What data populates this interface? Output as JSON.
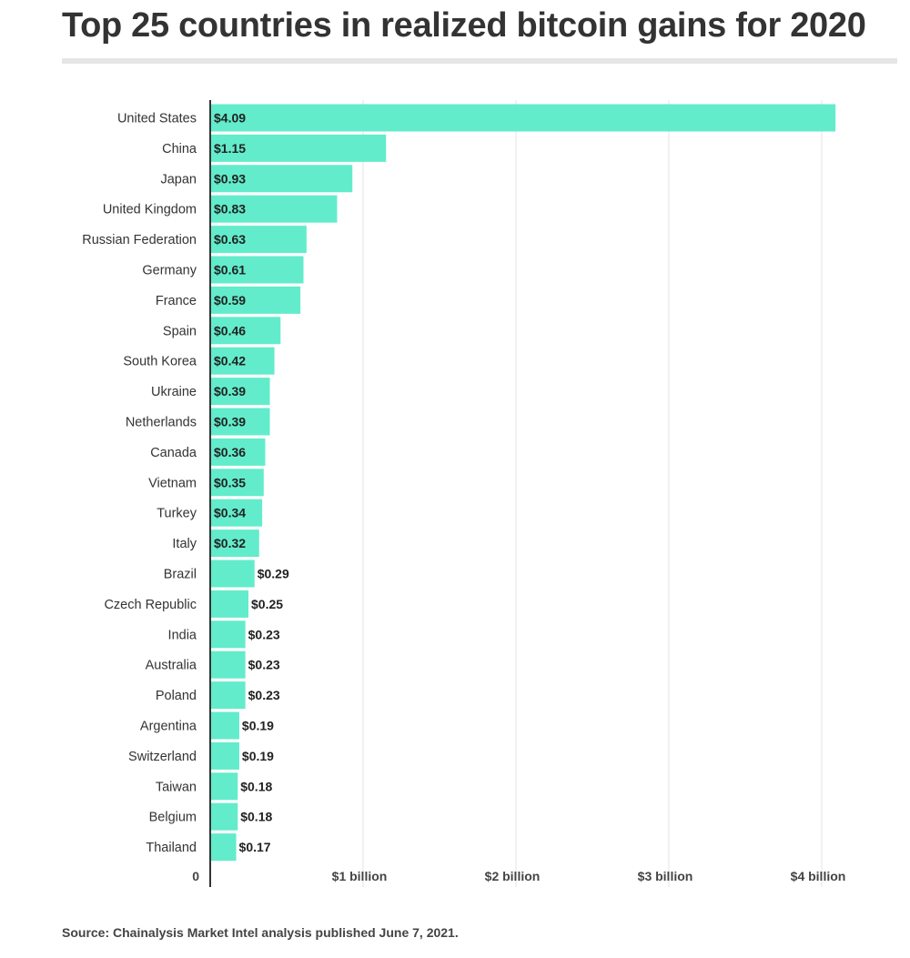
{
  "title": "Top 25 countries in realized bitcoin gains for 2020",
  "source": "Source: Chainalysis Market Intel analysis published June 7, 2021.",
  "colors": {
    "bar": "#62eccb",
    "text": "#333333",
    "grid": "#e3e3e3",
    "axis": "#333333"
  },
  "chart_data": {
    "type": "bar",
    "orientation": "horizontal",
    "unit": "billion USD",
    "categories": [
      "United States",
      "China",
      "Japan",
      "United Kingdom",
      "Russian Federation",
      "Germany",
      "France",
      "Spain",
      "South Korea",
      "Ukraine",
      "Netherlands",
      "Canada",
      "Vietnam",
      "Turkey",
      "Italy",
      "Brazil",
      "Czech Republic",
      "India",
      "Australia",
      "Poland",
      "Argentina",
      "Switzerland",
      "Taiwan",
      "Belgium",
      "Thailand"
    ],
    "values": [
      4.09,
      1.15,
      0.93,
      0.83,
      0.63,
      0.61,
      0.59,
      0.46,
      0.42,
      0.39,
      0.39,
      0.36,
      0.35,
      0.34,
      0.32,
      0.29,
      0.25,
      0.23,
      0.23,
      0.23,
      0.19,
      0.19,
      0.18,
      0.18,
      0.17
    ],
    "value_labels": [
      "$4.09",
      "$1.15",
      "$0.93",
      "$0.83",
      "$0.63",
      "$0.61",
      "$0.59",
      "$0.46",
      "$0.42",
      "$0.39",
      "$0.39",
      "$0.36",
      "$0.35",
      "$0.34",
      "$0.32",
      "$0.29",
      "$0.25",
      "$0.23",
      "$0.23",
      "$0.23",
      "$0.19",
      "$0.19",
      "$0.18",
      "$0.18",
      "$0.17"
    ],
    "xlim": [
      0,
      4.1
    ],
    "xticks": [
      0,
      1,
      2,
      3,
      4
    ],
    "xtick_labels": [
      "0",
      "$1 billion",
      "$2 billion",
      "$3 billion",
      "$4 billion"
    ],
    "grid": true,
    "legend": "none"
  }
}
